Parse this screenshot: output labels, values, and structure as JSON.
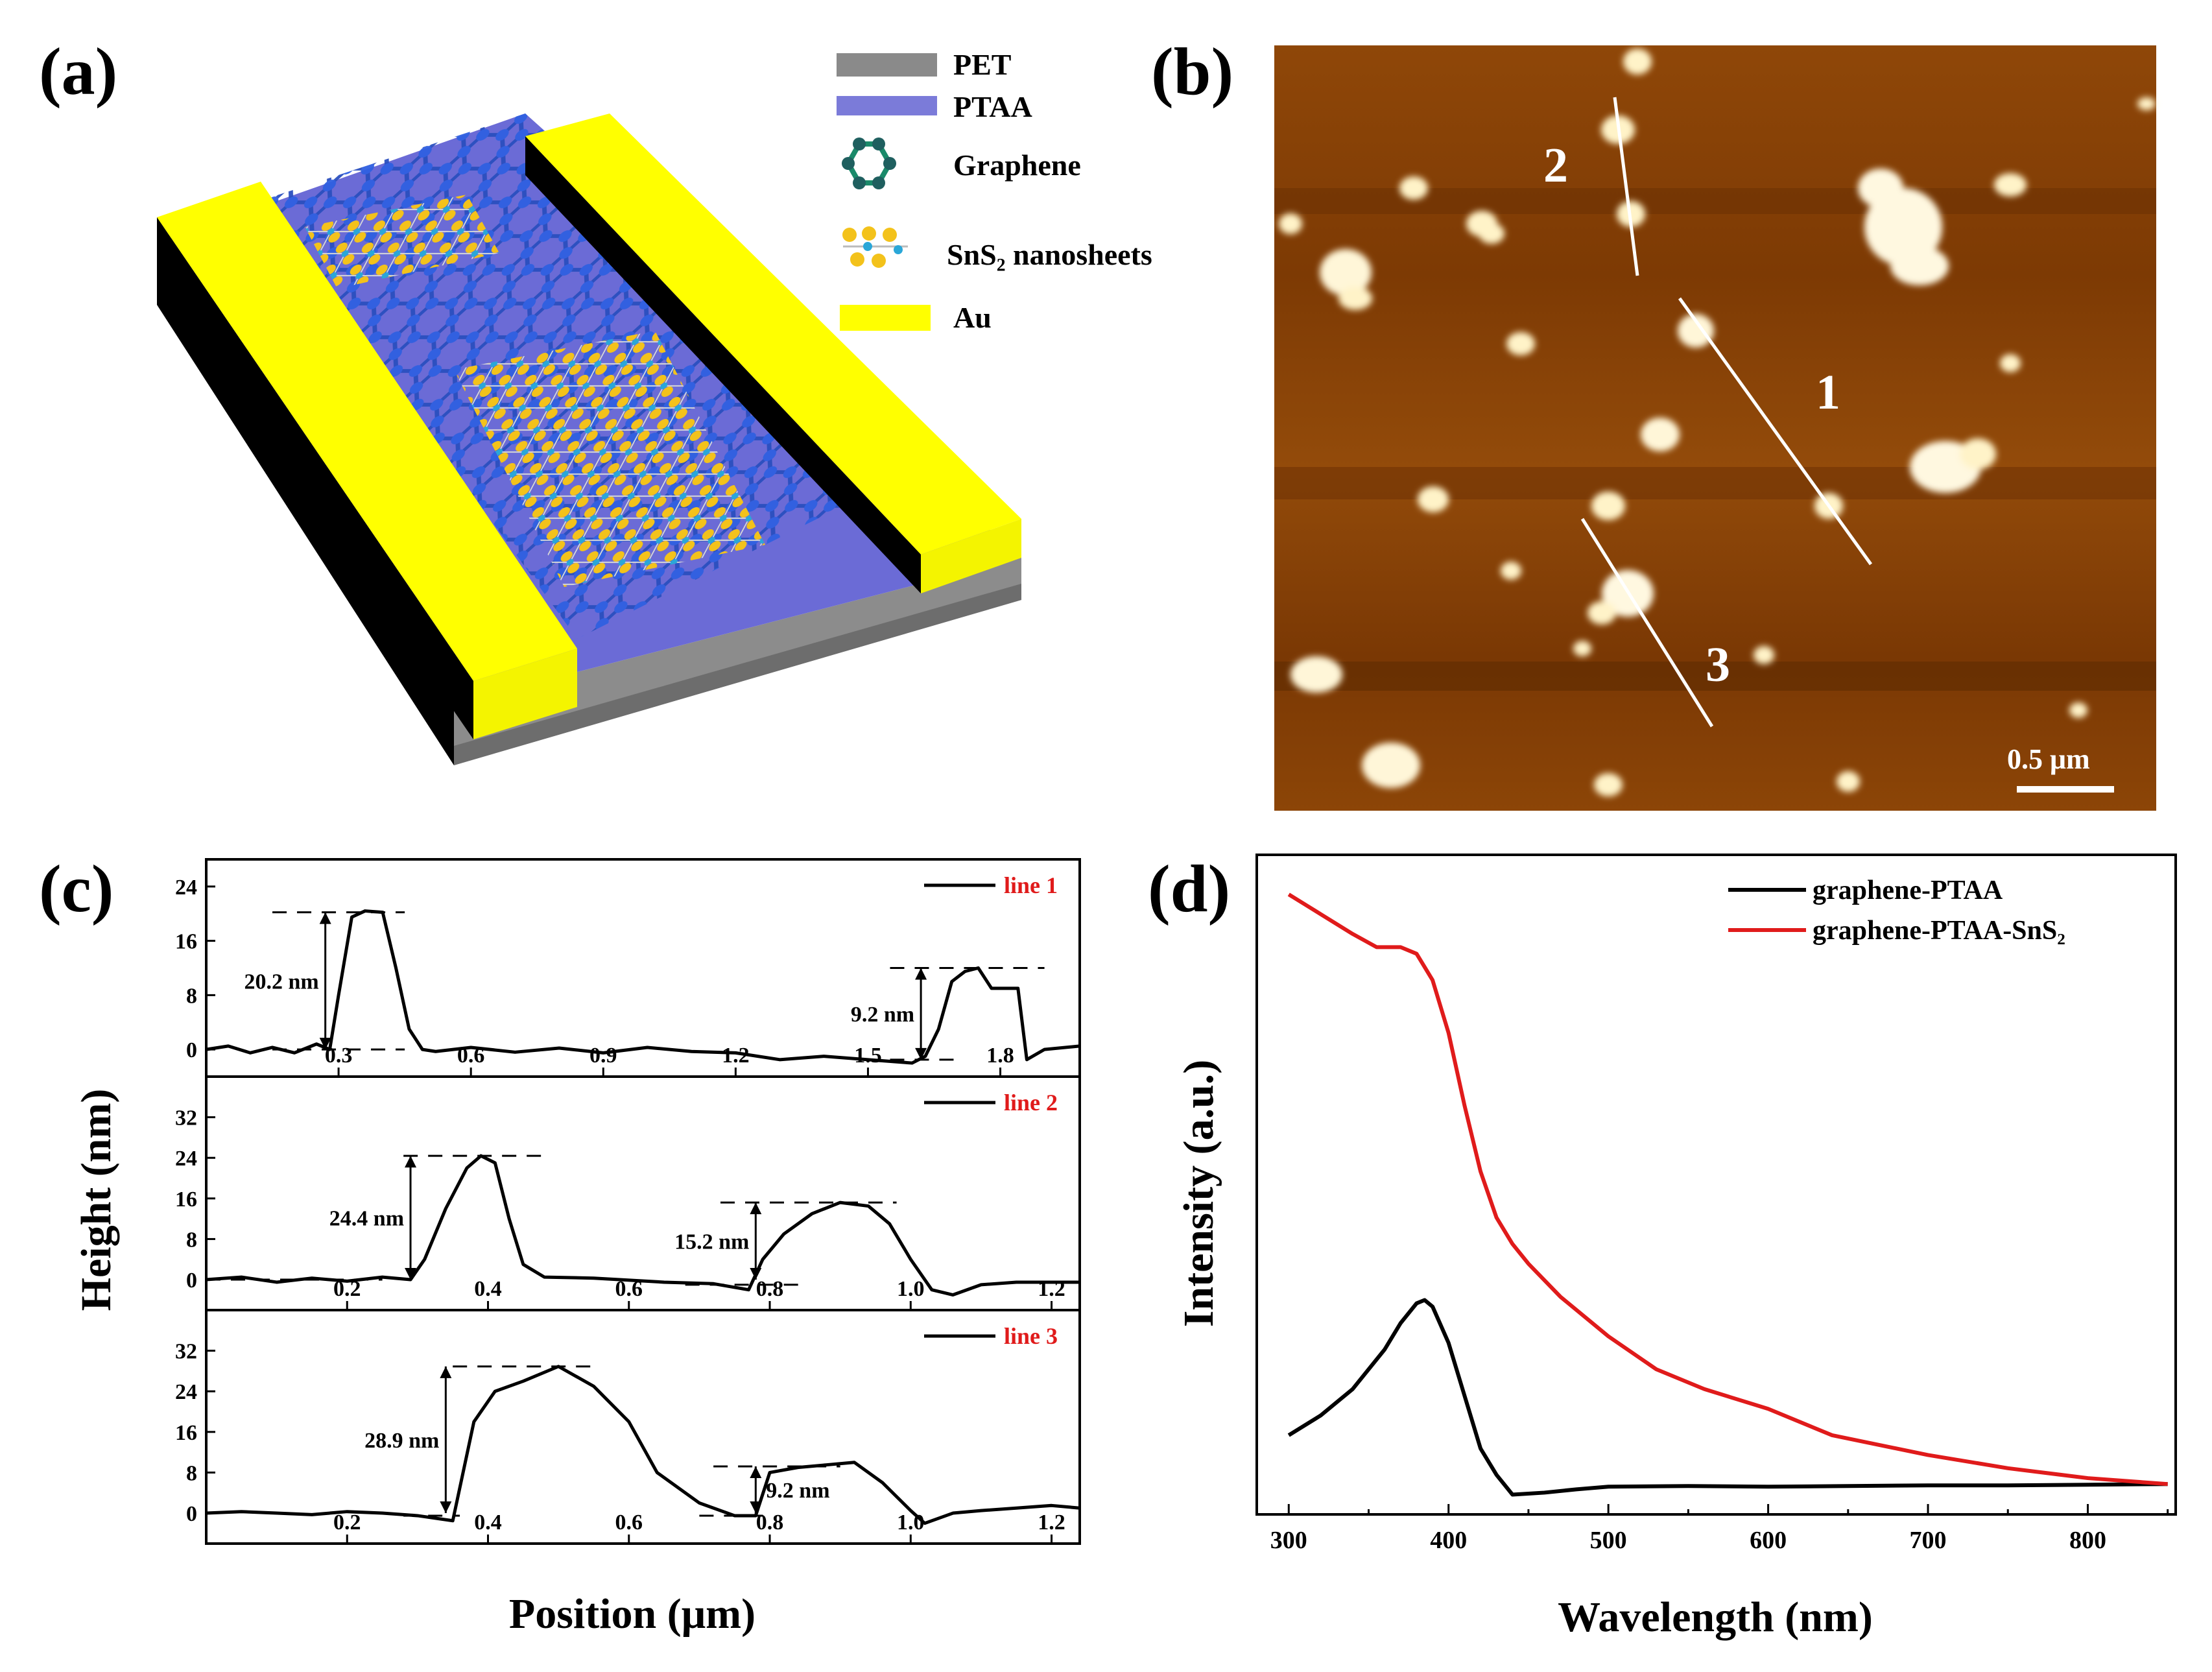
{
  "panels": {
    "a": {
      "label": "(a)",
      "legend": [
        {
          "text": "PET",
          "swatch_color": "#8a8a8a"
        },
        {
          "text": "PTAA",
          "swatch_color": "#7b7bd9"
        },
        {
          "text": "Graphene",
          "swatch_icon": "hexagon-ring-icon"
        },
        {
          "text": "SnS₂ nanosheets",
          "swatch_icon": "sns2-lattice-icon"
        },
        {
          "text": "Au",
          "swatch_color": "#ffff00"
        }
      ]
    },
    "b": {
      "label": "(b)",
      "line_labels": [
        "1",
        "2",
        "3"
      ],
      "scale_bar": "0.5 μm"
    }
  },
  "colors": {
    "black_curve": "#000000",
    "red_curve": "#e01b1b",
    "afm_bg": "#8a4306",
    "au": "#ffff00",
    "ptaa": "#6b6bd6",
    "pet": "#8c8c8c"
  },
  "chart_data": [
    {
      "id": "c",
      "label": "(c)",
      "type": "line",
      "ylabel": "Height (nm)",
      "xlabel": "Position (μm)",
      "subplots": [
        {
          "name": "line 1",
          "xlim": [
            0,
            1.98
          ],
          "ylim": [
            -4,
            28
          ],
          "xticks": [
            0.3,
            0.6,
            0.9,
            1.2,
            1.5,
            1.8
          ],
          "xtick_labels": [
            "0.3",
            "0.6",
            "0.9",
            "1.2",
            "1.5",
            "1.8"
          ],
          "yticks": [
            0,
            8,
            16,
            24
          ],
          "ytick_labels": [
            "0",
            "8",
            "16",
            "24"
          ],
          "x": [
            0.0,
            0.05,
            0.1,
            0.15,
            0.2,
            0.25,
            0.28,
            0.3,
            0.33,
            0.36,
            0.4,
            0.43,
            0.46,
            0.49,
            0.52,
            0.6,
            0.7,
            0.8,
            0.9,
            1.0,
            1.1,
            1.2,
            1.3,
            1.4,
            1.5,
            1.6,
            1.63,
            1.66,
            1.69,
            1.72,
            1.75,
            1.78,
            1.8,
            1.84,
            1.86,
            1.9,
            1.98
          ],
          "y": [
            0,
            0.5,
            -0.5,
            0.3,
            -0.5,
            0.8,
            0,
            8,
            19.5,
            20.4,
            20.2,
            12,
            3,
            0,
            -0.3,
            0.3,
            -0.4,
            0.2,
            -0.5,
            0.3,
            -0.3,
            -0.5,
            -1.5,
            -1,
            -1.5,
            -2,
            -1,
            3,
            10,
            11.5,
            12,
            9,
            9,
            9,
            -1.5,
            0,
            0.5
          ],
          "annotations": [
            {
              "text": "20.2 nm",
              "value": 20.2
            },
            {
              "text": "9.2 nm",
              "value": 9.2
            }
          ]
        },
        {
          "name": "line 2",
          "xlim": [
            0,
            1.24
          ],
          "ylim": [
            -6,
            40
          ],
          "xticks": [
            0.2,
            0.4,
            0.6,
            0.8,
            1.0,
            1.2
          ],
          "xtick_labels": [
            "0.2",
            "0.4",
            "0.6",
            "0.8",
            "1.0",
            "1.2"
          ],
          "yticks": [
            0,
            8,
            16,
            24,
            32
          ],
          "ytick_labels": [
            "0",
            "8",
            "16",
            "24",
            "32"
          ],
          "x": [
            0.0,
            0.05,
            0.1,
            0.15,
            0.2,
            0.25,
            0.29,
            0.31,
            0.34,
            0.37,
            0.39,
            0.41,
            0.43,
            0.45,
            0.48,
            0.55,
            0.65,
            0.72,
            0.77,
            0.79,
            0.82,
            0.86,
            0.9,
            0.94,
            0.97,
            1.0,
            1.03,
            1.06,
            1.1,
            1.15,
            1.24
          ],
          "y": [
            0,
            0.5,
            -0.5,
            0.3,
            -0.3,
            0.5,
            0,
            4,
            14,
            22,
            24.4,
            23,
            12,
            3,
            0.5,
            0.3,
            -0.5,
            -0.8,
            -2,
            4,
            9,
            13,
            15.2,
            14.5,
            11,
            4,
            -2,
            -3,
            -1,
            -0.5,
            -0.5
          ],
          "annotations": [
            {
              "text": "24.4 nm",
              "value": 24.4
            },
            {
              "text": "15.2 nm",
              "value": 15.2
            }
          ]
        },
        {
          "name": "line 3",
          "xlim": [
            0,
            1.24
          ],
          "ylim": [
            -6,
            40
          ],
          "xticks": [
            0.2,
            0.4,
            0.6,
            0.8,
            1.0,
            1.2
          ],
          "xtick_labels": [
            "0.2",
            "0.4",
            "0.6",
            "0.8",
            "1.0",
            "1.2"
          ],
          "yticks": [
            0,
            8,
            16,
            24,
            32
          ],
          "ytick_labels": [
            "0",
            "8",
            "16",
            "24",
            "32"
          ],
          "x": [
            0.0,
            0.05,
            0.1,
            0.15,
            0.2,
            0.25,
            0.3,
            0.35,
            0.38,
            0.41,
            0.45,
            0.5,
            0.55,
            0.6,
            0.64,
            0.7,
            0.75,
            0.78,
            0.8,
            0.84,
            0.88,
            0.92,
            0.96,
            1.0,
            1.02,
            1.06,
            1.1,
            1.15,
            1.2,
            1.24
          ],
          "y": [
            0,
            0.3,
            0,
            -0.3,
            0.3,
            0,
            -0.5,
            -1.5,
            18,
            24,
            26,
            28.9,
            25,
            18,
            8,
            2,
            -0.5,
            -0.5,
            8,
            9,
            9.5,
            10,
            6,
            0.5,
            -2,
            0,
            0.5,
            1,
            1.5,
            1
          ],
          "annotations": [
            {
              "text": "28.9 nm",
              "value": 28.9
            },
            {
              "text": "9.2 nm",
              "value": 9.2
            }
          ]
        }
      ]
    },
    {
      "id": "d",
      "label": "(d)",
      "type": "line",
      "xlabel": "Wavelength (nm)",
      "ylabel": "Intensity (a.u.)",
      "xlim": [
        280,
        855
      ],
      "ylim": [
        0,
        100
      ],
      "xticks": [
        300,
        400,
        500,
        600,
        700,
        800
      ],
      "xtick_labels": [
        "300",
        "400",
        "500",
        "600",
        "700",
        "800"
      ],
      "series": [
        {
          "name": "graphene-PTAA",
          "color": "#000000",
          "x": [
            300,
            320,
            340,
            360,
            370,
            380,
            385,
            390,
            400,
            410,
            420,
            430,
            440,
            460,
            480,
            500,
            550,
            600,
            650,
            700,
            750,
            800,
            850
          ],
          "y": [
            12,
            15,
            19,
            25,
            29,
            32,
            32.5,
            31.5,
            26,
            18,
            10,
            6,
            3,
            3.3,
            3.8,
            4.2,
            4.3,
            4.2,
            4.3,
            4.4,
            4.4,
            4.5,
            4.6
          ]
        },
        {
          "name": "graphene-PTAA-SnS₂",
          "color": "#e01b1b",
          "x": [
            300,
            320,
            340,
            355,
            370,
            380,
            390,
            400,
            410,
            420,
            430,
            440,
            450,
            470,
            500,
            530,
            560,
            600,
            640,
            700,
            750,
            800,
            850
          ],
          "y": [
            94,
            91,
            88,
            86,
            86,
            85,
            81,
            73,
            62,
            52,
            45,
            41,
            38,
            33,
            27,
            22,
            19,
            16,
            12,
            9,
            7,
            5.5,
            4.6
          ]
        }
      ]
    }
  ]
}
